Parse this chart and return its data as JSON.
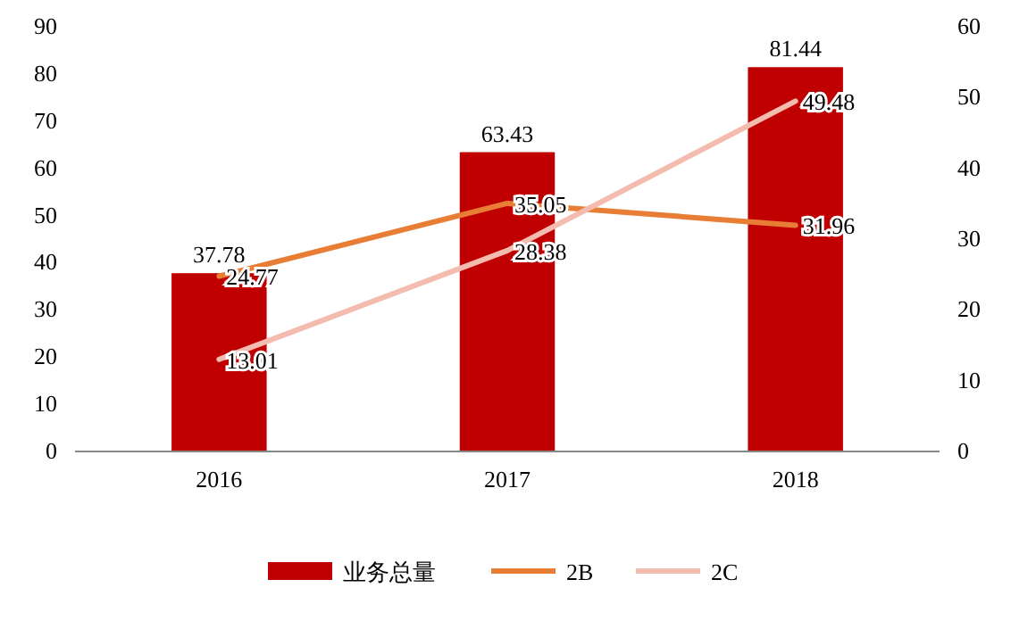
{
  "chart_data": {
    "type": "bar",
    "categories": [
      "2016",
      "2017",
      "2018"
    ],
    "series": [
      {
        "name": "业务总量",
        "color": "#c00000",
        "values": [
          37.78,
          63.43,
          81.44
        ]
      },
      {
        "name": "2B",
        "type": "line",
        "axis": "y2",
        "color": "#e87d35",
        "values": [
          24.77,
          35.05,
          31.96
        ]
      },
      {
        "name": "2C",
        "type": "line",
        "axis": "y2",
        "color": "#f4bcae",
        "values": [
          13.01,
          28.38,
          49.48
        ]
      }
    ],
    "ylim": [
      0,
      90
    ],
    "yticks": [
      0,
      10,
      20,
      30,
      40,
      50,
      60,
      70,
      80,
      90
    ],
    "y2lim": [
      0,
      60
    ],
    "y2ticks": [
      0,
      10,
      20,
      30,
      40,
      50,
      60
    ],
    "data_labels": true,
    "legend": "bottom",
    "grid": false,
    "marker": "none"
  }
}
